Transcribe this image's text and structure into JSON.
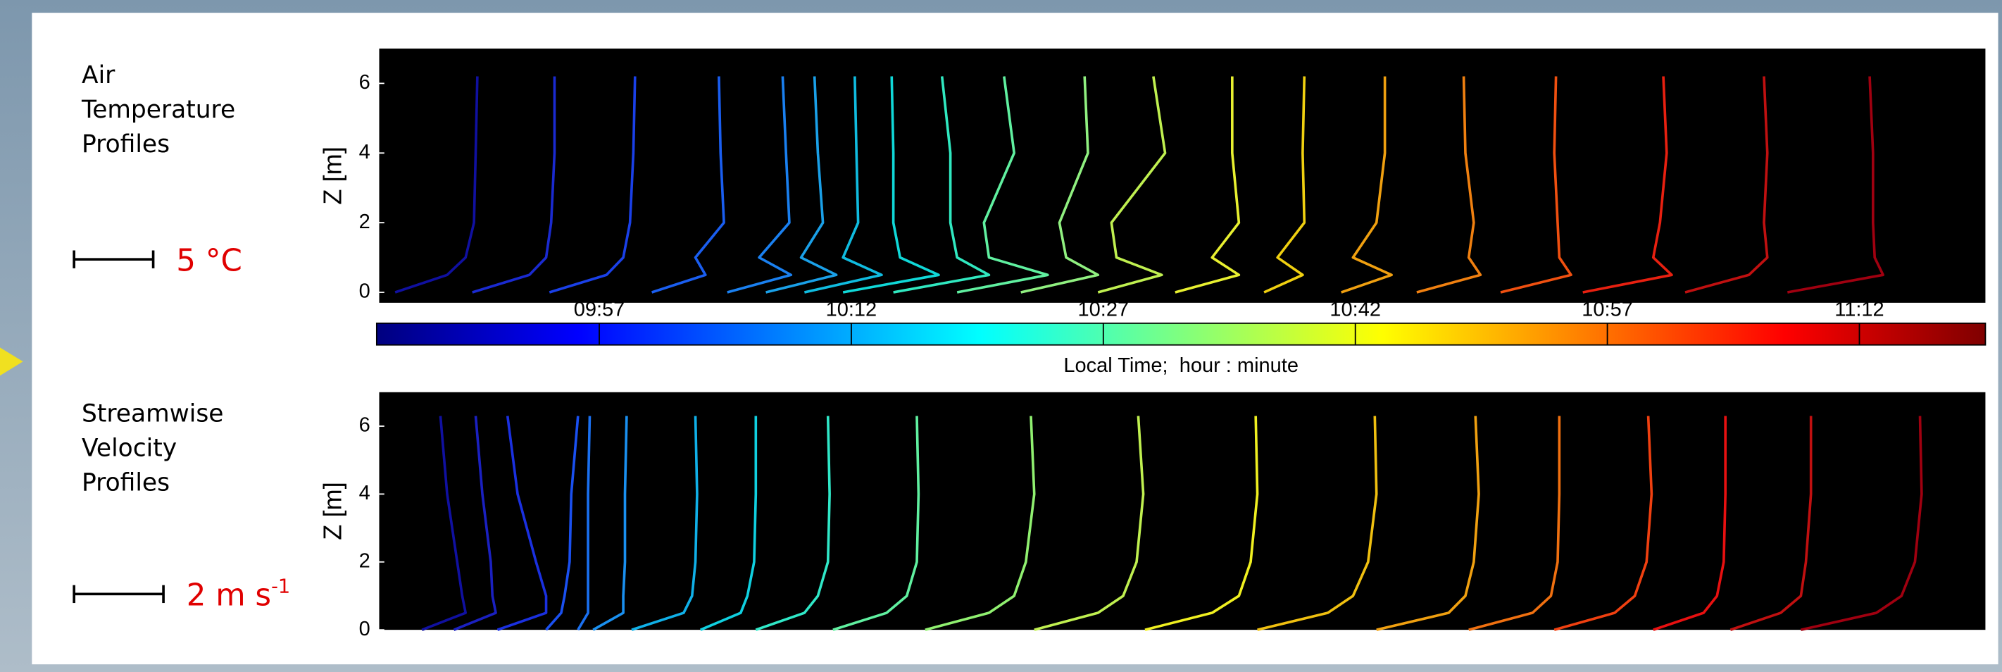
{
  "chart_data": [
    {
      "type": "line",
      "label_lines": [
        "Air",
        "Temperature",
        "Profiles"
      ],
      "scale_label": "5 °C",
      "ylabel": "Z [m]",
      "ylim": [
        -0.3,
        7
      ],
      "yticks": [
        0,
        2,
        4,
        6
      ],
      "xlim": [
        583.75,
        679.5
      ],
      "series": [
        {
          "color": "#1010a0",
          "x": [
            584.7,
            587.8,
            588.9,
            589.4,
            589.5,
            589.6
          ],
          "values": [
            0,
            0.5,
            1,
            2,
            4,
            6.2
          ]
        },
        {
          "color": "#1a2ad0",
          "x": [
            589.3,
            592.7,
            593.7,
            594.0,
            594.2,
            594.2
          ],
          "values": [
            0,
            0.5,
            1,
            2,
            4,
            6.2
          ]
        },
        {
          "color": "#1a40e8",
          "x": [
            593.9,
            597.3,
            598.3,
            598.7,
            598.9,
            599.0
          ],
          "values": [
            0,
            0.5,
            1,
            2,
            4,
            6.2
          ]
        },
        {
          "color": "#1a5ef0",
          "x": [
            600.0,
            603.2,
            602.6,
            604.3,
            604.1,
            604.0
          ],
          "values": [
            0,
            0.5,
            1,
            2,
            4,
            6.2
          ]
        },
        {
          "color": "#1a80f0",
          "x": [
            604.5,
            608.3,
            606.4,
            608.2,
            608.0,
            607.8
          ],
          "values": [
            0,
            0.5,
            1,
            2,
            4,
            6.2
          ]
        },
        {
          "color": "#1aa0e8",
          "x": [
            606.8,
            611.0,
            608.9,
            610.2,
            609.9,
            609.7
          ],
          "values": [
            0,
            0.5,
            1,
            2,
            4,
            6.2
          ]
        },
        {
          "color": "#10bce0",
          "x": [
            609.1,
            613.7,
            611.4,
            612.3,
            612.2,
            612.1
          ],
          "values": [
            0,
            0.5,
            1,
            2,
            4,
            6.2
          ]
        },
        {
          "color": "#10d8d8",
          "x": [
            611.4,
            617.1,
            614.8,
            614.4,
            614.4,
            614.3
          ],
          "values": [
            0,
            0.5,
            1,
            2,
            4,
            6.2
          ]
        },
        {
          "color": "#30e8c0",
          "x": [
            614.4,
            620.1,
            618.2,
            617.8,
            617.8,
            617.3
          ],
          "values": [
            0,
            0.5,
            1,
            2,
            4,
            6.2
          ]
        },
        {
          "color": "#60f0a0",
          "x": [
            618.2,
            623.6,
            620.1,
            619.8,
            621.6,
            621.0
          ],
          "values": [
            0,
            0.5,
            1,
            2,
            4,
            6.2
          ]
        },
        {
          "color": "#90f080",
          "x": [
            622.0,
            626.6,
            624.7,
            624.3,
            626.0,
            625.8
          ],
          "values": [
            0,
            0.5,
            1,
            2,
            4,
            6.2
          ]
        },
        {
          "color": "#c0f050",
          "x": [
            626.6,
            630.4,
            627.7,
            627.4,
            630.6,
            629.9
          ],
          "values": [
            0,
            0.5,
            1,
            2,
            4,
            6.2
          ]
        },
        {
          "color": "#e8f030",
          "x": [
            631.2,
            635.0,
            633.4,
            635.0,
            634.6,
            634.6
          ],
          "values": [
            0,
            0.5,
            1,
            2,
            4,
            6.2
          ]
        },
        {
          "color": "#f0d010",
          "x": [
            636.5,
            638.8,
            637.3,
            638.9,
            638.8,
            638.9
          ],
          "values": [
            0,
            0.5,
            1,
            2,
            4,
            6.2
          ]
        },
        {
          "color": "#f0a010",
          "x": [
            641.1,
            644.1,
            641.8,
            643.2,
            643.7,
            643.7
          ],
          "values": [
            0,
            0.5,
            1,
            2,
            4,
            6.2
          ]
        },
        {
          "color": "#f08010",
          "x": [
            645.6,
            649.4,
            648.7,
            649.0,
            648.5,
            648.4
          ],
          "values": [
            0,
            0.5,
            1,
            2,
            4,
            6.2
          ]
        },
        {
          "color": "#f05010",
          "x": [
            650.6,
            654.8,
            654.1,
            654.0,
            653.8,
            653.9
          ],
          "values": [
            0,
            0.5,
            1,
            2,
            4,
            6.2
          ]
        },
        {
          "color": "#e82010",
          "x": [
            655.5,
            660.8,
            659.7,
            660.1,
            660.5,
            660.3
          ],
          "values": [
            0,
            0.5,
            1,
            2,
            4,
            6.2
          ]
        },
        {
          "color": "#c01010",
          "x": [
            661.6,
            665.4,
            666.5,
            666.3,
            666.5,
            666.3
          ],
          "values": [
            0,
            0.5,
            1,
            2,
            4,
            6.2
          ]
        },
        {
          "color": "#a00010",
          "x": [
            667.7,
            673.4,
            672.9,
            672.8,
            672.8,
            672.6
          ],
          "values": [
            0,
            0.5,
            1,
            2,
            4,
            6.2
          ]
        }
      ]
    },
    {
      "type": "line",
      "label_lines": [
        "Streamwise",
        "Velocity",
        "Profiles"
      ],
      "scale_label": "2 m s",
      "scale_label_sup": "-1",
      "ylabel": "Z [m]",
      "ylim": [
        0,
        7
      ],
      "yticks": [
        0,
        2,
        4,
        6
      ],
      "xlim": [
        583.75,
        679.5
      ],
      "series": [
        {
          "color": "#1010a0",
          "x": [
            586.3,
            588.9,
            588.7,
            588.4,
            587.8,
            587.4
          ],
          "values": [
            0,
            0.5,
            1,
            2,
            4,
            6.3
          ]
        },
        {
          "color": "#1a20c0",
          "x": [
            588.2,
            590.7,
            590.5,
            590.4,
            589.9,
            589.5
          ],
          "values": [
            0,
            0.5,
            1,
            2,
            4,
            6.3
          ]
        },
        {
          "color": "#1a30e0",
          "x": [
            590.8,
            593.7,
            593.7,
            593.1,
            592.0,
            591.4
          ],
          "values": [
            0,
            0.5,
            1,
            2,
            4,
            6.3
          ]
        },
        {
          "color": "#1a50f0",
          "x": [
            593.7,
            594.6,
            594.8,
            595.1,
            595.2,
            595.6
          ],
          "values": [
            0,
            0.5,
            1,
            2,
            4,
            6.3
          ]
        },
        {
          "color": "#1a70f0",
          "x": [
            595.6,
            596.2,
            596.2,
            596.2,
            596.2,
            596.3
          ],
          "values": [
            0,
            0.5,
            1,
            2,
            4,
            6.3
          ]
        },
        {
          "color": "#1a90f0",
          "x": [
            596.5,
            598.3,
            598.3,
            598.4,
            598.4,
            598.5
          ],
          "values": [
            0,
            0.5,
            1,
            2,
            4,
            6.3
          ]
        },
        {
          "color": "#10b0e8",
          "x": [
            598.8,
            601.9,
            602.4,
            602.6,
            602.7,
            602.6
          ],
          "values": [
            0,
            0.5,
            1,
            2,
            4,
            6.3
          ]
        },
        {
          "color": "#10d0e0",
          "x": [
            602.9,
            605.3,
            605.7,
            606.1,
            606.2,
            606.2
          ],
          "values": [
            0,
            0.5,
            1,
            2,
            4,
            6.3
          ]
        },
        {
          "color": "#30e8c8",
          "x": [
            606.2,
            609.1,
            609.9,
            610.5,
            610.6,
            610.5
          ],
          "values": [
            0,
            0.5,
            1,
            2,
            4,
            6.3
          ]
        },
        {
          "color": "#60f0a0",
          "x": [
            610.8,
            614.0,
            615.2,
            615.8,
            615.9,
            615.8
          ],
          "values": [
            0,
            0.5,
            1,
            2,
            4,
            6.3
          ]
        },
        {
          "color": "#90f070",
          "x": [
            616.3,
            620.1,
            621.6,
            622.3,
            622.8,
            622.6
          ],
          "values": [
            0,
            0.5,
            1,
            2,
            4,
            6.3
          ]
        },
        {
          "color": "#c0f050",
          "x": [
            622.8,
            626.6,
            628.1,
            628.9,
            629.3,
            629.0
          ],
          "values": [
            0,
            0.5,
            1,
            2,
            4,
            6.3
          ]
        },
        {
          "color": "#f0f020",
          "x": [
            629.4,
            633.4,
            635.0,
            635.7,
            636.1,
            636.0
          ],
          "values": [
            0,
            0.5,
            1,
            2,
            4,
            6.3
          ]
        },
        {
          "color": "#f0c010",
          "x": [
            636.1,
            640.3,
            641.8,
            642.7,
            643.2,
            643.1
          ],
          "values": [
            0,
            0.5,
            1,
            2,
            4,
            6.3
          ]
        },
        {
          "color": "#f0a010",
          "x": [
            643.2,
            647.5,
            648.5,
            649.0,
            649.3,
            649.1
          ],
          "values": [
            0,
            0.5,
            1,
            2,
            4,
            6.3
          ]
        },
        {
          "color": "#f07010",
          "x": [
            648.7,
            652.5,
            653.6,
            654.0,
            654.1,
            654.1
          ],
          "values": [
            0,
            0.5,
            1,
            2,
            4,
            6.3
          ]
        },
        {
          "color": "#f04010",
          "x": [
            653.8,
            657.4,
            658.6,
            659.3,
            659.6,
            659.4
          ],
          "values": [
            0,
            0.5,
            1,
            2,
            4,
            6.3
          ]
        },
        {
          "color": "#e81010",
          "x": [
            659.7,
            662.7,
            663.5,
            663.9,
            664.0,
            664.0
          ],
          "values": [
            0,
            0.5,
            1,
            2,
            4,
            6.3
          ]
        },
        {
          "color": "#c01010",
          "x": [
            664.3,
            667.3,
            668.5,
            668.8,
            669.1,
            669.1
          ],
          "values": [
            0,
            0.5,
            1,
            2,
            4,
            6.3
          ]
        },
        {
          "color": "#a00010",
          "x": [
            668.5,
            673.0,
            674.5,
            675.3,
            675.7,
            675.6
          ],
          "values": [
            0,
            0.5,
            1,
            2,
            4,
            6.3
          ]
        }
      ]
    }
  ],
  "colorbar": {
    "label": "Local Time;  hour : minute",
    "clim": [
      583.75,
      679.5
    ],
    "ticks": [
      {
        "value": 597,
        "label": "09:57"
      },
      {
        "value": 612,
        "label": "10:12"
      },
      {
        "value": 627,
        "label": "10:27"
      },
      {
        "value": 642,
        "label": "10:42"
      },
      {
        "value": 657,
        "label": "10:57"
      },
      {
        "value": 672,
        "label": "11:12"
      }
    ],
    "colors": [
      "#00007f",
      "#0000ff",
      "#007fff",
      "#00ffff",
      "#7fff7f",
      "#ffff00",
      "#ff7f00",
      "#ff0000",
      "#7f0000"
    ]
  }
}
